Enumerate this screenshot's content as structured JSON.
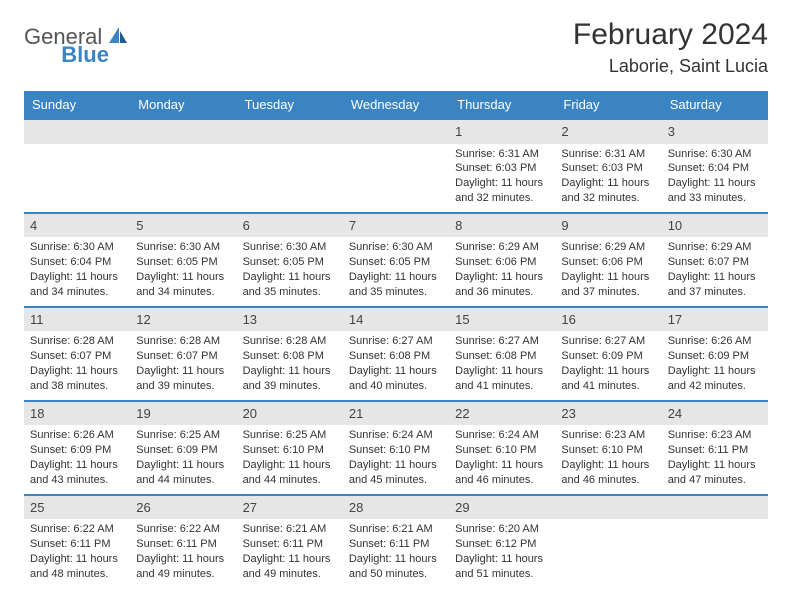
{
  "brand": {
    "general": "General",
    "blue": "Blue"
  },
  "title": {
    "month": "February 2024",
    "location": "Laborie, Saint Lucia"
  },
  "colors": {
    "header_bg": "#3b84c4",
    "header_text": "#ffffff",
    "daynum_bg": "#e6e6e6",
    "row_border": "#3b84c4",
    "body_text": "#333333",
    "logo_blue": "#3b84c4",
    "logo_general": "#555555"
  },
  "dow": [
    "Sunday",
    "Monday",
    "Tuesday",
    "Wednesday",
    "Thursday",
    "Friday",
    "Saturday"
  ],
  "weeks": [
    [
      {
        "empty": true
      },
      {
        "empty": true
      },
      {
        "empty": true
      },
      {
        "empty": true
      },
      {
        "day": "1",
        "sunrise": "Sunrise: 6:31 AM",
        "sunset": "Sunset: 6:03 PM",
        "daylight": "Daylight: 11 hours and 32 minutes."
      },
      {
        "day": "2",
        "sunrise": "Sunrise: 6:31 AM",
        "sunset": "Sunset: 6:03 PM",
        "daylight": "Daylight: 11 hours and 32 minutes."
      },
      {
        "day": "3",
        "sunrise": "Sunrise: 6:30 AM",
        "sunset": "Sunset: 6:04 PM",
        "daylight": "Daylight: 11 hours and 33 minutes."
      }
    ],
    [
      {
        "day": "4",
        "sunrise": "Sunrise: 6:30 AM",
        "sunset": "Sunset: 6:04 PM",
        "daylight": "Daylight: 11 hours and 34 minutes."
      },
      {
        "day": "5",
        "sunrise": "Sunrise: 6:30 AM",
        "sunset": "Sunset: 6:05 PM",
        "daylight": "Daylight: 11 hours and 34 minutes."
      },
      {
        "day": "6",
        "sunrise": "Sunrise: 6:30 AM",
        "sunset": "Sunset: 6:05 PM",
        "daylight": "Daylight: 11 hours and 35 minutes."
      },
      {
        "day": "7",
        "sunrise": "Sunrise: 6:30 AM",
        "sunset": "Sunset: 6:05 PM",
        "daylight": "Daylight: 11 hours and 35 minutes."
      },
      {
        "day": "8",
        "sunrise": "Sunrise: 6:29 AM",
        "sunset": "Sunset: 6:06 PM",
        "daylight": "Daylight: 11 hours and 36 minutes."
      },
      {
        "day": "9",
        "sunrise": "Sunrise: 6:29 AM",
        "sunset": "Sunset: 6:06 PM",
        "daylight": "Daylight: 11 hours and 37 minutes."
      },
      {
        "day": "10",
        "sunrise": "Sunrise: 6:29 AM",
        "sunset": "Sunset: 6:07 PM",
        "daylight": "Daylight: 11 hours and 37 minutes."
      }
    ],
    [
      {
        "day": "11",
        "sunrise": "Sunrise: 6:28 AM",
        "sunset": "Sunset: 6:07 PM",
        "daylight": "Daylight: 11 hours and 38 minutes."
      },
      {
        "day": "12",
        "sunrise": "Sunrise: 6:28 AM",
        "sunset": "Sunset: 6:07 PM",
        "daylight": "Daylight: 11 hours and 39 minutes."
      },
      {
        "day": "13",
        "sunrise": "Sunrise: 6:28 AM",
        "sunset": "Sunset: 6:08 PM",
        "daylight": "Daylight: 11 hours and 39 minutes."
      },
      {
        "day": "14",
        "sunrise": "Sunrise: 6:27 AM",
        "sunset": "Sunset: 6:08 PM",
        "daylight": "Daylight: 11 hours and 40 minutes."
      },
      {
        "day": "15",
        "sunrise": "Sunrise: 6:27 AM",
        "sunset": "Sunset: 6:08 PM",
        "daylight": "Daylight: 11 hours and 41 minutes."
      },
      {
        "day": "16",
        "sunrise": "Sunrise: 6:27 AM",
        "sunset": "Sunset: 6:09 PM",
        "daylight": "Daylight: 11 hours and 41 minutes."
      },
      {
        "day": "17",
        "sunrise": "Sunrise: 6:26 AM",
        "sunset": "Sunset: 6:09 PM",
        "daylight": "Daylight: 11 hours and 42 minutes."
      }
    ],
    [
      {
        "day": "18",
        "sunrise": "Sunrise: 6:26 AM",
        "sunset": "Sunset: 6:09 PM",
        "daylight": "Daylight: 11 hours and 43 minutes."
      },
      {
        "day": "19",
        "sunrise": "Sunrise: 6:25 AM",
        "sunset": "Sunset: 6:09 PM",
        "daylight": "Daylight: 11 hours and 44 minutes."
      },
      {
        "day": "20",
        "sunrise": "Sunrise: 6:25 AM",
        "sunset": "Sunset: 6:10 PM",
        "daylight": "Daylight: 11 hours and 44 minutes."
      },
      {
        "day": "21",
        "sunrise": "Sunrise: 6:24 AM",
        "sunset": "Sunset: 6:10 PM",
        "daylight": "Daylight: 11 hours and 45 minutes."
      },
      {
        "day": "22",
        "sunrise": "Sunrise: 6:24 AM",
        "sunset": "Sunset: 6:10 PM",
        "daylight": "Daylight: 11 hours and 46 minutes."
      },
      {
        "day": "23",
        "sunrise": "Sunrise: 6:23 AM",
        "sunset": "Sunset: 6:10 PM",
        "daylight": "Daylight: 11 hours and 46 minutes."
      },
      {
        "day": "24",
        "sunrise": "Sunrise: 6:23 AM",
        "sunset": "Sunset: 6:11 PM",
        "daylight": "Daylight: 11 hours and 47 minutes."
      }
    ],
    [
      {
        "day": "25",
        "sunrise": "Sunrise: 6:22 AM",
        "sunset": "Sunset: 6:11 PM",
        "daylight": "Daylight: 11 hours and 48 minutes."
      },
      {
        "day": "26",
        "sunrise": "Sunrise: 6:22 AM",
        "sunset": "Sunset: 6:11 PM",
        "daylight": "Daylight: 11 hours and 49 minutes."
      },
      {
        "day": "27",
        "sunrise": "Sunrise: 6:21 AM",
        "sunset": "Sunset: 6:11 PM",
        "daylight": "Daylight: 11 hours and 49 minutes."
      },
      {
        "day": "28",
        "sunrise": "Sunrise: 6:21 AM",
        "sunset": "Sunset: 6:11 PM",
        "daylight": "Daylight: 11 hours and 50 minutes."
      },
      {
        "day": "29",
        "sunrise": "Sunrise: 6:20 AM",
        "sunset": "Sunset: 6:12 PM",
        "daylight": "Daylight: 11 hours and 51 minutes."
      },
      {
        "empty": true
      },
      {
        "empty": true
      }
    ]
  ]
}
